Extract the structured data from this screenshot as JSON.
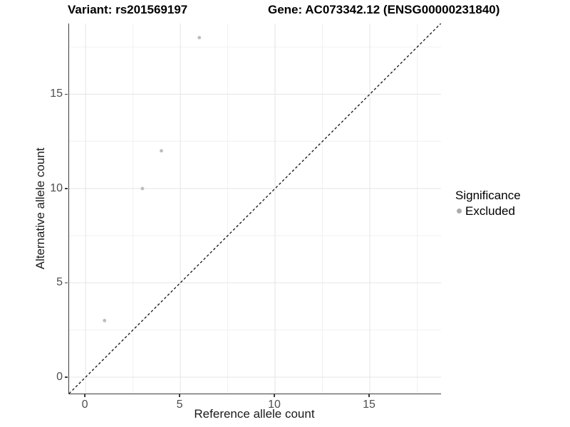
{
  "chart_data": {
    "type": "scatter",
    "title_left": "Variant: rs201569197",
    "title_right": "Gene: AC073342.12 (ENSG00000231840)",
    "xlabel": "Reference allele count",
    "ylabel": "Alternative allele count",
    "xlim": [
      -0.87,
      18.76
    ],
    "ylim": [
      -0.87,
      18.75
    ],
    "x_major_ticks": [
      0,
      5,
      10,
      15
    ],
    "y_major_ticks": [
      0,
      5,
      10,
      15
    ],
    "x_minor_ticks": [
      2.5,
      7.5,
      12.5,
      17.5
    ],
    "y_minor_ticks": [
      2.5,
      7.5,
      12.5,
      17.5
    ],
    "grid": "major+minor",
    "identity_line": {
      "style": "dashed",
      "slope": 1,
      "intercept": 0,
      "color": "#111111"
    },
    "series": [
      {
        "name": "Excluded",
        "color": "#bdbdbd",
        "points": [
          [
            1,
            3
          ],
          [
            3,
            10
          ],
          [
            4,
            12
          ],
          [
            6,
            18
          ]
        ]
      }
    ],
    "legend": {
      "title": "Significance",
      "position": "right",
      "items": [
        {
          "label": "Excluded",
          "color": "#ababab"
        }
      ]
    },
    "colors": {
      "grid_major": "#e4e4e4",
      "grid_minor": "#f1f1f1",
      "axis_line": "#3d3d3d",
      "tick_label": "#4d4d4d"
    }
  }
}
